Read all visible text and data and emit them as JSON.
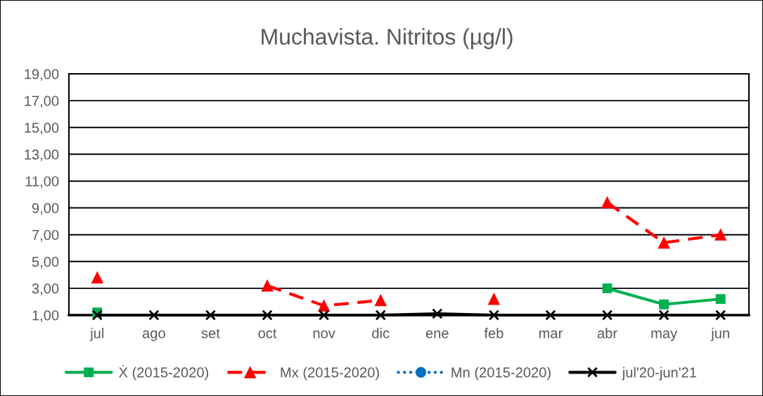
{
  "chart_data": {
    "type": "line",
    "title": "Muchavista. Nitritos (µg/l)",
    "categories": [
      "jul",
      "ago",
      "set",
      "oct",
      "nov",
      "dic",
      "ene",
      "feb",
      "mar",
      "abr",
      "may",
      "jun"
    ],
    "series": [
      {
        "name": "Ẋ (2015-2020)",
        "color": "#00b050",
        "marker": "square",
        "line_style": "solid",
        "values": [
          1.2,
          null,
          null,
          null,
          null,
          null,
          null,
          null,
          null,
          3.0,
          1.8,
          2.2
        ]
      },
      {
        "name": "Mx (2015-2020)",
        "color": "#ff0000",
        "marker": "triangle",
        "line_style": "dashed",
        "values": [
          3.8,
          null,
          null,
          3.2,
          1.7,
          2.1,
          null,
          2.2,
          null,
          9.4,
          6.4,
          7.0
        ]
      },
      {
        "name": "Mn (2015-2020)",
        "color": "#0070c0",
        "marker": "circle",
        "line_style": "dotted",
        "values": [
          null,
          null,
          null,
          null,
          null,
          null,
          null,
          null,
          null,
          null,
          null,
          null
        ]
      },
      {
        "name": "jul'20-jun'21",
        "color": "#000000",
        "marker": "cross",
        "line_style": "solid",
        "values": [
          1.0,
          1.0,
          1.0,
          1.0,
          1.0,
          1.0,
          1.1,
          1.0,
          1.0,
          1.0,
          1.0,
          1.0
        ]
      }
    ],
    "ylim": [
      1,
      19
    ],
    "yticks": [
      {
        "value": 1,
        "label": "1,00"
      },
      {
        "value": 3,
        "label": "3,00"
      },
      {
        "value": 5,
        "label": "5,00"
      },
      {
        "value": 7,
        "label": "7,00"
      },
      {
        "value": 9,
        "label": "9,00"
      },
      {
        "value": 11,
        "label": "11,00"
      },
      {
        "value": 13,
        "label": "13,00"
      },
      {
        "value": 15,
        "label": "15,00"
      },
      {
        "value": 17,
        "label": "17,00"
      },
      {
        "value": 19,
        "label": "19,00"
      }
    ],
    "grid": "y",
    "legend": "bottom"
  }
}
